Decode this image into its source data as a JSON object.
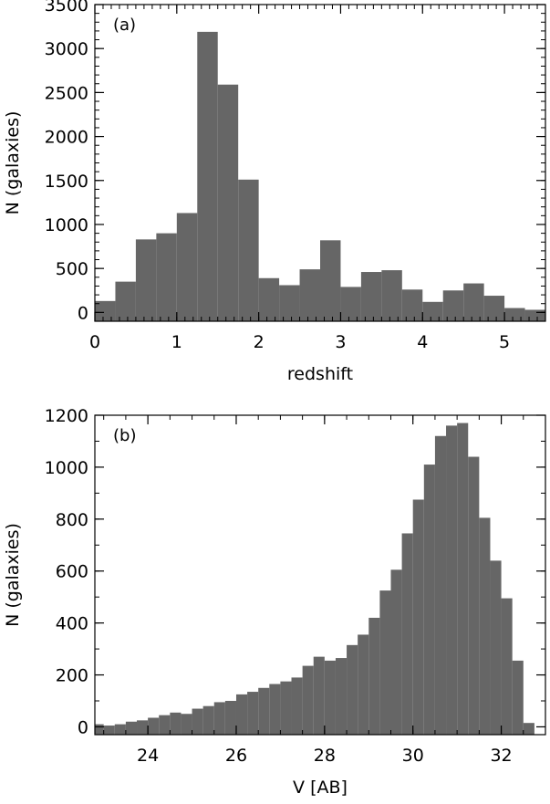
{
  "chart_data": [
    {
      "type": "bar",
      "panel_label": "(a)",
      "xlabel": "redshift",
      "ylabel": "N (galaxies)",
      "xlim": [
        0,
        5.5
      ],
      "ylim": [
        -100,
        3500
      ],
      "bar_color": "#666666",
      "bin_width": 0.25,
      "x_ticks": [
        "0",
        "1",
        "2",
        "3",
        "4",
        "5"
      ],
      "x_tick_values": [
        0,
        1,
        2,
        3,
        4,
        5
      ],
      "y_ticks": [
        "0",
        "500",
        "1000",
        "1500",
        "2000",
        "2500",
        "3000",
        "3500"
      ],
      "y_tick_values": [
        0,
        500,
        1000,
        1500,
        2000,
        2500,
        3000,
        3500
      ],
      "bin_starts": [
        0,
        0.25,
        0.5,
        0.75,
        1.0,
        1.25,
        1.5,
        1.75,
        2.0,
        2.25,
        2.5,
        2.75,
        3.0,
        3.25,
        3.5,
        3.75,
        4.0,
        4.25,
        4.5,
        4.75,
        5.0,
        5.25
      ],
      "values": [
        130,
        350,
        830,
        900,
        1130,
        3190,
        2590,
        1510,
        390,
        310,
        490,
        820,
        290,
        460,
        480,
        260,
        120,
        250,
        330,
        190,
        50,
        30
      ]
    },
    {
      "type": "bar",
      "panel_label": "(b)",
      "xlabel": "V [AB]",
      "ylabel": "N (galaxies)",
      "xlim": [
        22.8,
        33.0
      ],
      "ylim": [
        -30,
        1200
      ],
      "bar_color": "#666666",
      "bin_width": 0.25,
      "x_ticks": [
        "24",
        "26",
        "28",
        "30",
        "32"
      ],
      "x_tick_values": [
        24,
        26,
        28,
        30,
        32
      ],
      "y_ticks": [
        "0",
        "200",
        "400",
        "600",
        "800",
        "1000",
        "1200"
      ],
      "y_tick_values": [
        0,
        200,
        400,
        600,
        800,
        1000,
        1200
      ],
      "bin_starts": [
        22.75,
        23.0,
        23.25,
        23.5,
        23.75,
        24.0,
        24.25,
        24.5,
        24.75,
        25.0,
        25.25,
        25.5,
        25.75,
        26.0,
        26.25,
        26.5,
        26.75,
        27.0,
        27.25,
        27.5,
        27.75,
        28.0,
        28.25,
        28.5,
        28.75,
        29.0,
        29.25,
        29.5,
        29.75,
        30.0,
        30.25,
        30.5,
        30.75,
        31.0,
        31.25,
        31.5,
        31.75,
        32.0,
        32.25,
        32.5
      ],
      "values": [
        10,
        5,
        10,
        20,
        25,
        35,
        45,
        55,
        50,
        70,
        80,
        95,
        100,
        125,
        135,
        150,
        165,
        175,
        190,
        235,
        270,
        255,
        265,
        315,
        355,
        420,
        525,
        605,
        745,
        875,
        1010,
        1120,
        1160,
        1170,
        1040,
        805,
        640,
        495,
        255,
        15
      ]
    }
  ]
}
